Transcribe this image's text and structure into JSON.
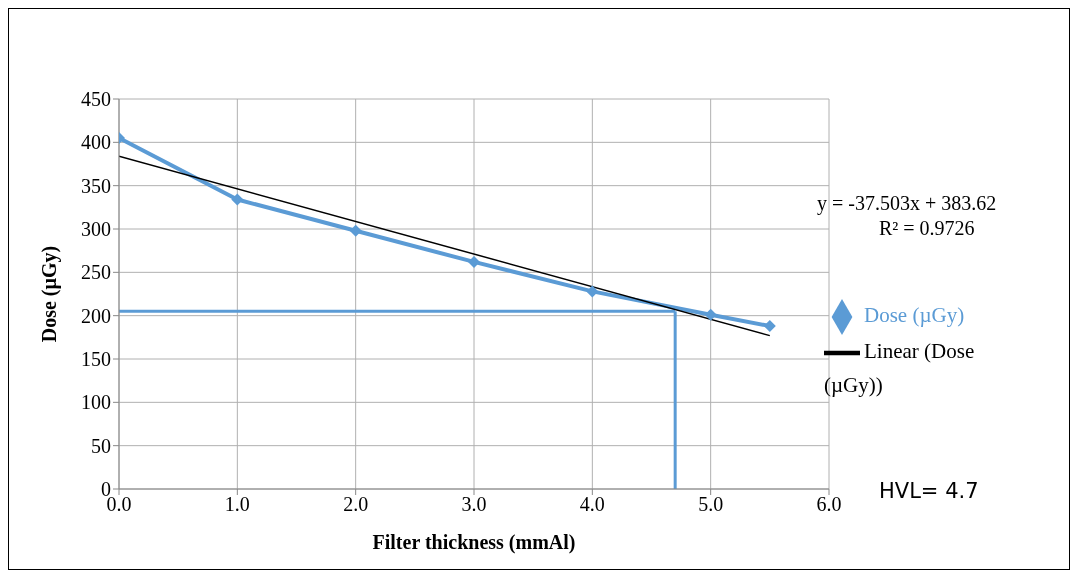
{
  "chart_data": {
    "type": "line",
    "xlabel": "Filter thickness (mmAl)",
    "ylabel": "Dose (µGy)",
    "xlim": [
      0,
      6
    ],
    "xticks": [
      {
        "value": 0,
        "label": "0.0"
      },
      {
        "value": 1,
        "label": "1.0"
      },
      {
        "value": 2,
        "label": "2.0"
      },
      {
        "value": 3,
        "label": "3.0"
      },
      {
        "value": 4,
        "label": "4.0"
      },
      {
        "value": 5,
        "label": "5.0"
      },
      {
        "value": 6,
        "label": "6.0"
      }
    ],
    "ylim": [
      0,
      450
    ],
    "yticks": [
      0,
      50,
      100,
      150,
      200,
      250,
      300,
      350,
      400,
      450
    ],
    "grid": true,
    "legend": "right",
    "line_style": "solid",
    "series": [
      {
        "name": "Dose (µGy)",
        "color": "#5b9bd5",
        "marker": "diamond",
        "x": [
          0,
          1,
          2,
          3,
          4,
          5,
          5.5
        ],
        "values": [
          405,
          334,
          298,
          262,
          228,
          201,
          188
        ]
      },
      {
        "name": "Linear (Dose (µGy))",
        "color": "#000000",
        "marker": "none",
        "x": [
          0,
          5.5
        ],
        "values": [
          384,
          177
        ]
      }
    ],
    "ref_lines": [
      {
        "axis": "x",
        "value": 4.7,
        "color": "#5b9bd5"
      },
      {
        "axis": "y",
        "value": 205,
        "color": "#5b9bd5"
      }
    ],
    "annotations": [
      "y = -37.503x + 383.62",
      "R² = 0.9726",
      "HVL= 4.7"
    ]
  }
}
